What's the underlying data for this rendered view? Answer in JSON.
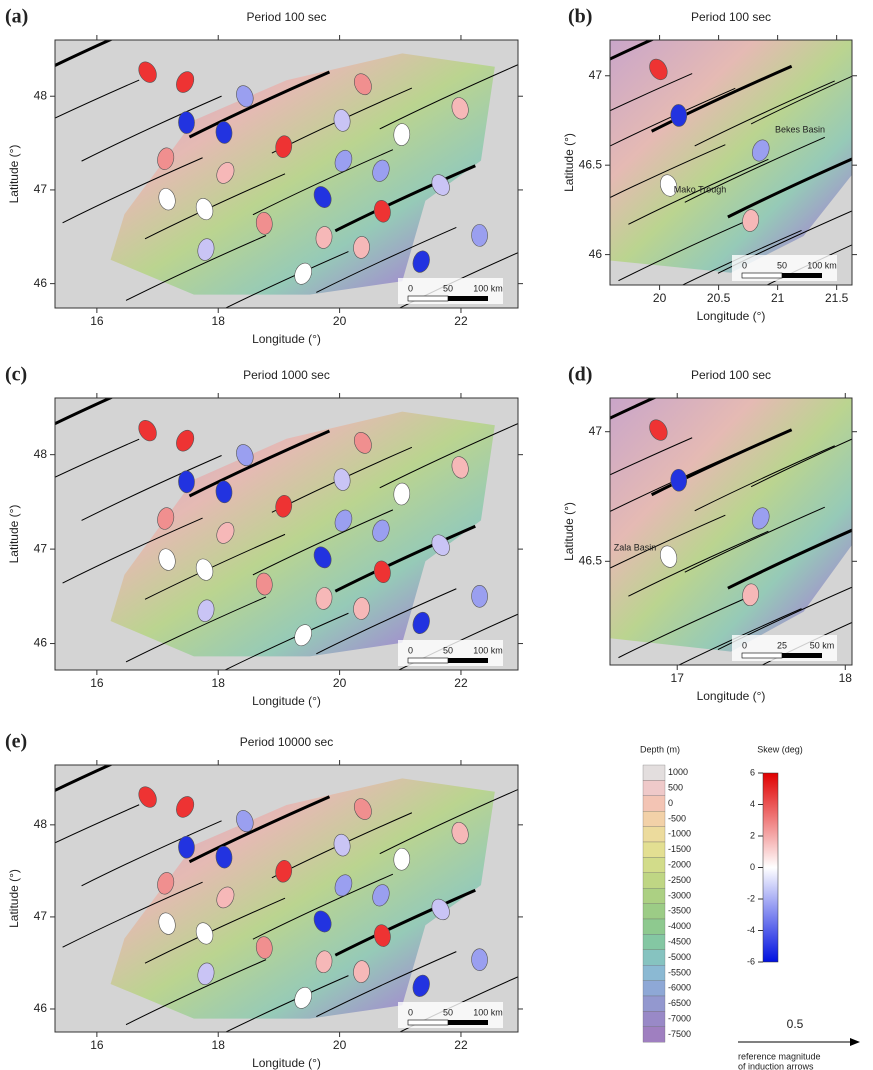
{
  "panels": [
    {
      "label": "(a)",
      "title": "Period 100 sec",
      "xlabel": "Longitude (°)",
      "ylabel": "Latitude (°)",
      "xlim": [
        15.31,
        22.94
      ],
      "ylim": [
        45.74,
        48.6
      ],
      "xticks": [
        16,
        18,
        20,
        22
      ],
      "yticks": [
        46,
        47,
        48
      ],
      "scalebar": [
        "0",
        "50",
        "100 km"
      ]
    },
    {
      "label": "(b)",
      "title": "Period 100 sec",
      "xlabel": "Longitude (°)",
      "ylabel": "Latitude (°)",
      "xlim": [
        19.58,
        21.63
      ],
      "ylim": [
        45.83,
        47.2
      ],
      "xticks": [
        20,
        20.5,
        21,
        21.5
      ],
      "yticks": [
        46,
        46.5,
        47
      ],
      "scalebar": [
        "0",
        "50",
        "100 km"
      ],
      "places": [
        "Bekes Basin",
        "Mako Trough"
      ]
    },
    {
      "label": "(c)",
      "title": "Period 1000 sec",
      "xlabel": "Longitude (°)",
      "ylabel": "Latitude (°)",
      "xlim": [
        15.31,
        22.94
      ],
      "ylim": [
        45.72,
        48.6
      ],
      "xticks": [
        16,
        18,
        20,
        22
      ],
      "yticks": [
        46,
        47,
        48
      ],
      "scalebar": [
        "0",
        "50",
        "100 km"
      ]
    },
    {
      "label": "(d)",
      "title": "Period 100 sec",
      "xlabel": "Longitude (°)",
      "ylabel": "Latitude (°)",
      "xlim": [
        16.6,
        18.04
      ],
      "ylim": [
        46.1,
        47.13
      ],
      "xticks": [
        17,
        18
      ],
      "yticks": [
        46.5,
        47
      ],
      "scalebar": [
        "0",
        "25",
        "50 km"
      ],
      "places": [
        "Zala Basin"
      ]
    },
    {
      "label": "(e)",
      "title": "Period 10000 sec",
      "xlabel": "Longitude (°)",
      "ylabel": "Latitude (°)",
      "xlim": [
        15.31,
        22.94
      ],
      "ylim": [
        45.75,
        48.65
      ],
      "xticks": [
        16,
        18,
        20,
        22
      ],
      "yticks": [
        46,
        47,
        48
      ],
      "scalebar": [
        "0",
        "50",
        "100 km"
      ]
    }
  ],
  "legend": {
    "depth_title": "Depth (m)",
    "depth_labels": [
      1000,
      500,
      0,
      -500,
      -1000,
      -1500,
      -2000,
      -2500,
      -3000,
      -3500,
      -4000,
      -4500,
      -5000,
      -5500,
      -6000,
      -6500,
      -7000,
      -7500
    ],
    "depth_colors": [
      "#e3dede",
      "#efc9c9",
      "#f3c4b4",
      "#f2d1a8",
      "#ecdb9d",
      "#e3df92",
      "#d2dc8a",
      "#bfd684",
      "#acd083",
      "#9ccc86",
      "#8ec98f",
      "#84c7a3",
      "#86c3c0",
      "#8bb9d3",
      "#8ea8d6",
      "#9398cf",
      "#9989c7",
      "#9f7fc0"
    ],
    "skew_title": "Skew (deg)",
    "skew_ticks": [
      6,
      4,
      2,
      0,
      -2,
      -4,
      -6
    ],
    "skew_range": [
      -6,
      6
    ],
    "arrow_value": "0.5",
    "arrow_text": [
      "reference magnitude",
      "of induction arrows"
    ]
  }
}
